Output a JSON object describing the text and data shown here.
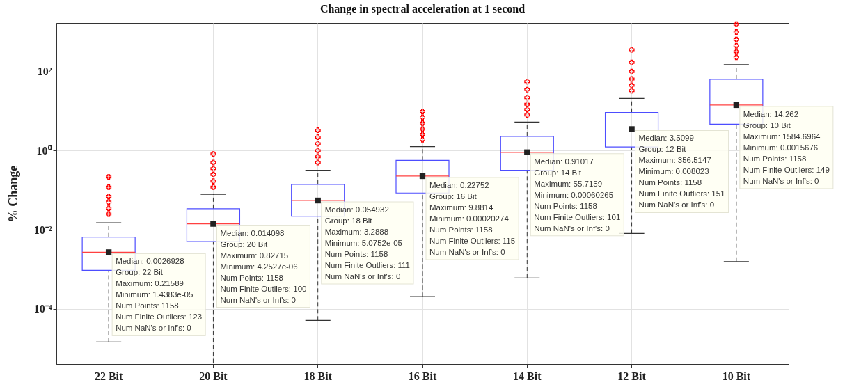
{
  "chart_data": {
    "type": "box",
    "title": "Change in spectral acceleration at 1 second",
    "ylabel": "% Change",
    "categories": [
      "22 Bit",
      "20 Bit",
      "18 Bit",
      "16 Bit",
      "14 Bit",
      "12 Bit",
      "10 Bit"
    ],
    "color": "#4d4dff",
    "boxes": [
      {
        "low": 1.4383e-05,
        "q1": 0.00094,
        "median": 0.0026928,
        "q3": 0.0065,
        "high": 0.015,
        "outliers": [
          0.025,
          0.035,
          0.05,
          0.07,
          0.12,
          0.21589
        ]
      },
      {
        "low": 4.2527e-06,
        "q1": 0.005,
        "median": 0.014098,
        "q3": 0.034,
        "high": 0.079,
        "outliers": [
          0.12,
          0.17,
          0.25,
          0.35,
          0.5,
          0.82715
        ]
      },
      {
        "low": 5.0752e-05,
        "q1": 0.022,
        "median": 0.054932,
        "q3": 0.14,
        "high": 0.32,
        "outliers": [
          0.5,
          0.7,
          1.0,
          1.5,
          2.2,
          3.2888
        ]
      },
      {
        "low": 0.00020274,
        "q1": 0.085,
        "median": 0.22752,
        "q3": 0.57,
        "high": 1.27,
        "outliers": [
          1.9,
          2.6,
          3.5,
          5.0,
          7.0,
          9.8814
        ]
      },
      {
        "low": 0.00060265,
        "q1": 0.32,
        "median": 0.91017,
        "q3": 2.3,
        "high": 5.3,
        "outliers": [
          8.0,
          11,
          15,
          22,
          35,
          55.7159
        ]
      },
      {
        "low": 0.008023,
        "q1": 1.24,
        "median": 3.5099,
        "q3": 9.2,
        "high": 21,
        "outliers": [
          33,
          45,
          65,
          100,
          170,
          356.5147
        ]
      },
      {
        "low": 0.0015676,
        "q1": 4.7,
        "median": 14.262,
        "q3": 64,
        "high": 150,
        "outliers": [
          230,
          320,
          450,
          650,
          1000,
          1584.6964
        ]
      }
    ],
    "annotations": [
      {
        "text": "Median: 0.0026928\n\nGroup: 22 Bit\n\nMaximum: 0.21589\nMinimum: 1.4383e-05\nNum Points: 1158\nNum Finite Outliers: 123\nNum NaN's or Inf's: 0",
        "x": "22 Bit",
        "y": 0.0026928
      },
      {
        "text": "Median: 0.014098\n\nGroup: 20 Bit\n\nMaximum: 0.82715\nMinimum: 4.2527e-06\nNum Points: 1158\nNum Finite Outliers: 100\nNum NaN's or Inf's: 0",
        "x": "20 Bit",
        "y": 0.014098
      },
      {
        "text": "Median: 0.054932\n\nGroup: 18 Bit\n\nMaximum: 3.2888\nMinimum: 5.0752e-05\nNum Points: 1158\nNum Finite Outliers: 111\nNum NaN's or Inf's: 0",
        "x": "18 Bit",
        "y": 0.054932
      },
      {
        "text": "Median: 0.22752\n\nGroup: 16 Bit\n\nMaximum: 9.8814\nMinimum: 0.00020274\nNum Points: 1158\nNum Finite Outliers: 115\nNum NaN's or Inf's: 0",
        "x": "16 Bit",
        "y": 0.22752
      },
      {
        "text": "Median: 0.91017\n\nGroup: 14 Bit\n\nMaximum: 55.7159\nMinimum: 0.00060265\nNum Points: 1158\nNum Finite Outliers: 101\nNum NaN's or Inf's: 0",
        "x": "14 Bit",
        "y": 0.91017
      },
      {
        "text": "Median: 3.5099\n\nGroup: 12 Bit\n\nMaximum: 356.5147\nMinimum: 0.008023\nNum Points: 1158\nNum Finite Outliers: 151\nNum NaN's or Inf's: 0",
        "x": "12 Bit",
        "y": 3.5099
      },
      {
        "text": "Median: 14.262\n\nGroup: 10 Bit\n\nMaximum: 1584.6964\nMinimum: 0.0015676\nNum Points: 1158\nNum Finite Outliers: 149\nNum NaN's or Inf's: 0",
        "x": "10 Bit",
        "y": 14.262
      }
    ],
    "ylim": [
      4e-06,
      1700
    ],
    "yticks": [
      {
        "value": 0.0001,
        "label": "10⁻⁴"
      },
      {
        "value": 0.01,
        "label": "10⁻²"
      },
      {
        "value": 1,
        "label": "10⁰"
      },
      {
        "value": 100,
        "label": "10²"
      }
    ],
    "log": true,
    "grid": true,
    "marker": "cross"
  }
}
